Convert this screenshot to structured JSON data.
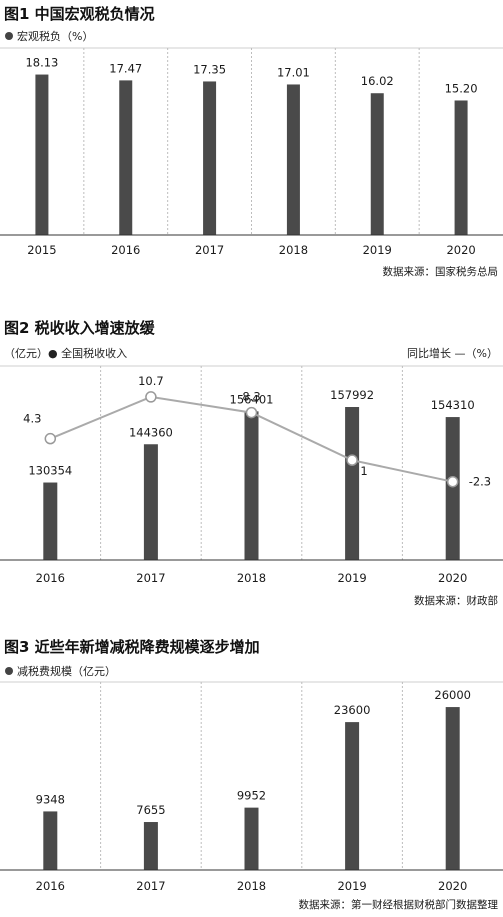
{
  "chart_data": [
    {
      "type": "bar",
      "title": "图1 中国宏观税负情况",
      "legend": "宏观税负（%）",
      "categories": [
        "2015",
        "2016",
        "2017",
        "2018",
        "2019",
        "2020"
      ],
      "values": [
        18.13,
        17.47,
        17.35,
        17.01,
        16.02,
        15.2
      ],
      "value_labels": [
        "18.13",
        "17.47",
        "17.35",
        "17.01",
        "16.02",
        "15.20"
      ],
      "source": "数据来源：国家税务总局",
      "ylim": [
        0,
        20
      ],
      "grid": true,
      "bar_color": "#4a4a4a"
    },
    {
      "type": "bar",
      "title": "图2 税收收入增速放缓",
      "legend": "（亿元）● 全国税收收入",
      "legend_right": "同比增长 —（%）",
      "categories": [
        "2016",
        "2017",
        "2018",
        "2019",
        "2020"
      ],
      "values": [
        130354,
        144360,
        156401,
        157992,
        154310
      ],
      "value_labels": [
        "130354",
        "144360",
        "156401",
        "157992",
        "154310"
      ],
      "series": [
        {
          "name": "同比增长",
          "values": [
            4.3,
            10.7,
            8.3,
            1,
            -2.3
          ],
          "labels": [
            "4.3",
            "10.7",
            "8.3",
            "1",
            "-2.3"
          ]
        }
      ],
      "source": "数据来源：财政部",
      "grid": true,
      "bar_color": "#4a4a4a",
      "line_color": "#aaaaaa"
    },
    {
      "type": "bar",
      "title": "图3 近些年新增减税降费规模逐步增加",
      "legend": "减税费规模（亿元）",
      "categories": [
        "2016",
        "2017",
        "2018",
        "2019",
        "2020"
      ],
      "values": [
        9348,
        7655,
        9952,
        23600,
        26000
      ],
      "value_labels": [
        "9348",
        "7655",
        "9952",
        "23600",
        "26000"
      ],
      "source": "数据来源：第一财经根据财税部门数据整理",
      "ylim": [
        0,
        30000
      ],
      "grid": true,
      "bar_color": "#4a4a4a"
    }
  ]
}
